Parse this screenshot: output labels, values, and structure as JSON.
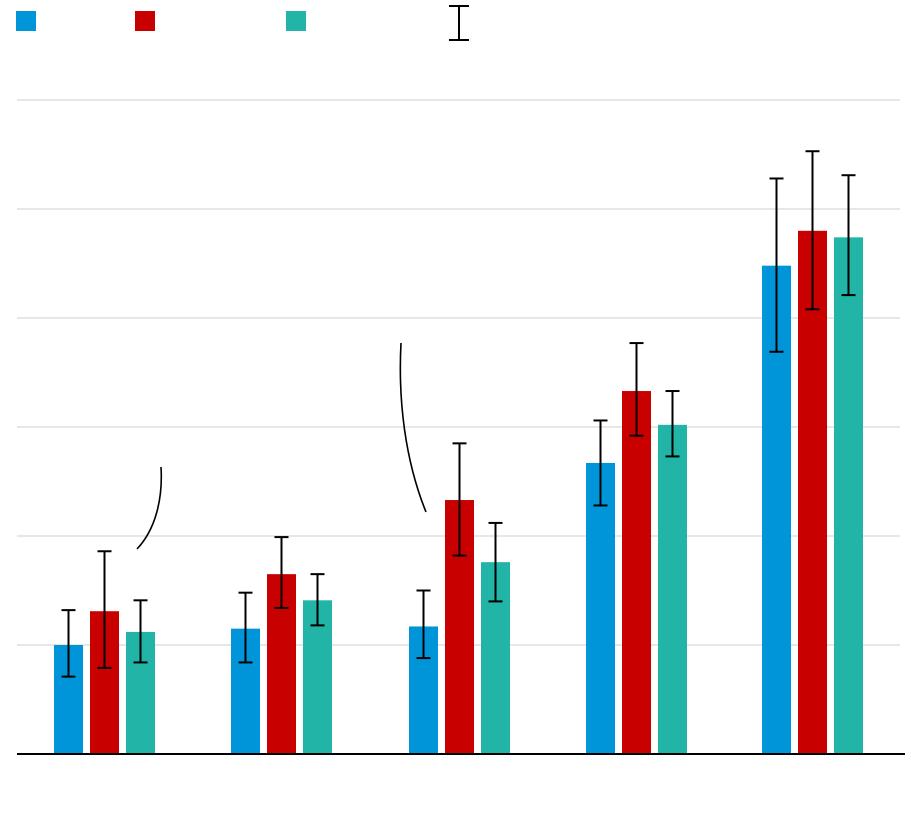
{
  "chart_data": {
    "type": "bar",
    "title": "",
    "xlabel": "",
    "ylabel": "",
    "ylim": [
      0,
      6
    ],
    "grid": true,
    "legend_position": "top-left",
    "categories": [
      "",
      "",
      "",
      "",
      ""
    ],
    "series": [
      {
        "color": "#0095d9",
        "values": [
          1.0,
          1.15,
          1.17,
          2.67,
          4.48
        ],
        "err_low": [
          0.29,
          0.31,
          0.29,
          0.39,
          0.79
        ],
        "err_high": [
          0.32,
          0.33,
          0.33,
          0.39,
          0.8
        ]
      },
      {
        "color": "#c80000",
        "values": [
          1.31,
          1.65,
          2.33,
          3.33,
          4.8
        ],
        "err_low": [
          0.52,
          0.31,
          0.51,
          0.41,
          0.72
        ],
        "err_high": [
          0.55,
          0.34,
          0.52,
          0.44,
          0.73
        ]
      },
      {
        "color": "#22b5a7",
        "values": [
          1.12,
          1.41,
          1.76,
          3.02,
          4.74
        ],
        "err_low": [
          0.28,
          0.23,
          0.36,
          0.29,
          0.53
        ],
        "err_high": [
          0.29,
          0.24,
          0.36,
          0.31,
          0.57
        ]
      }
    ],
    "legend": {
      "error_bar_entry": true
    }
  }
}
